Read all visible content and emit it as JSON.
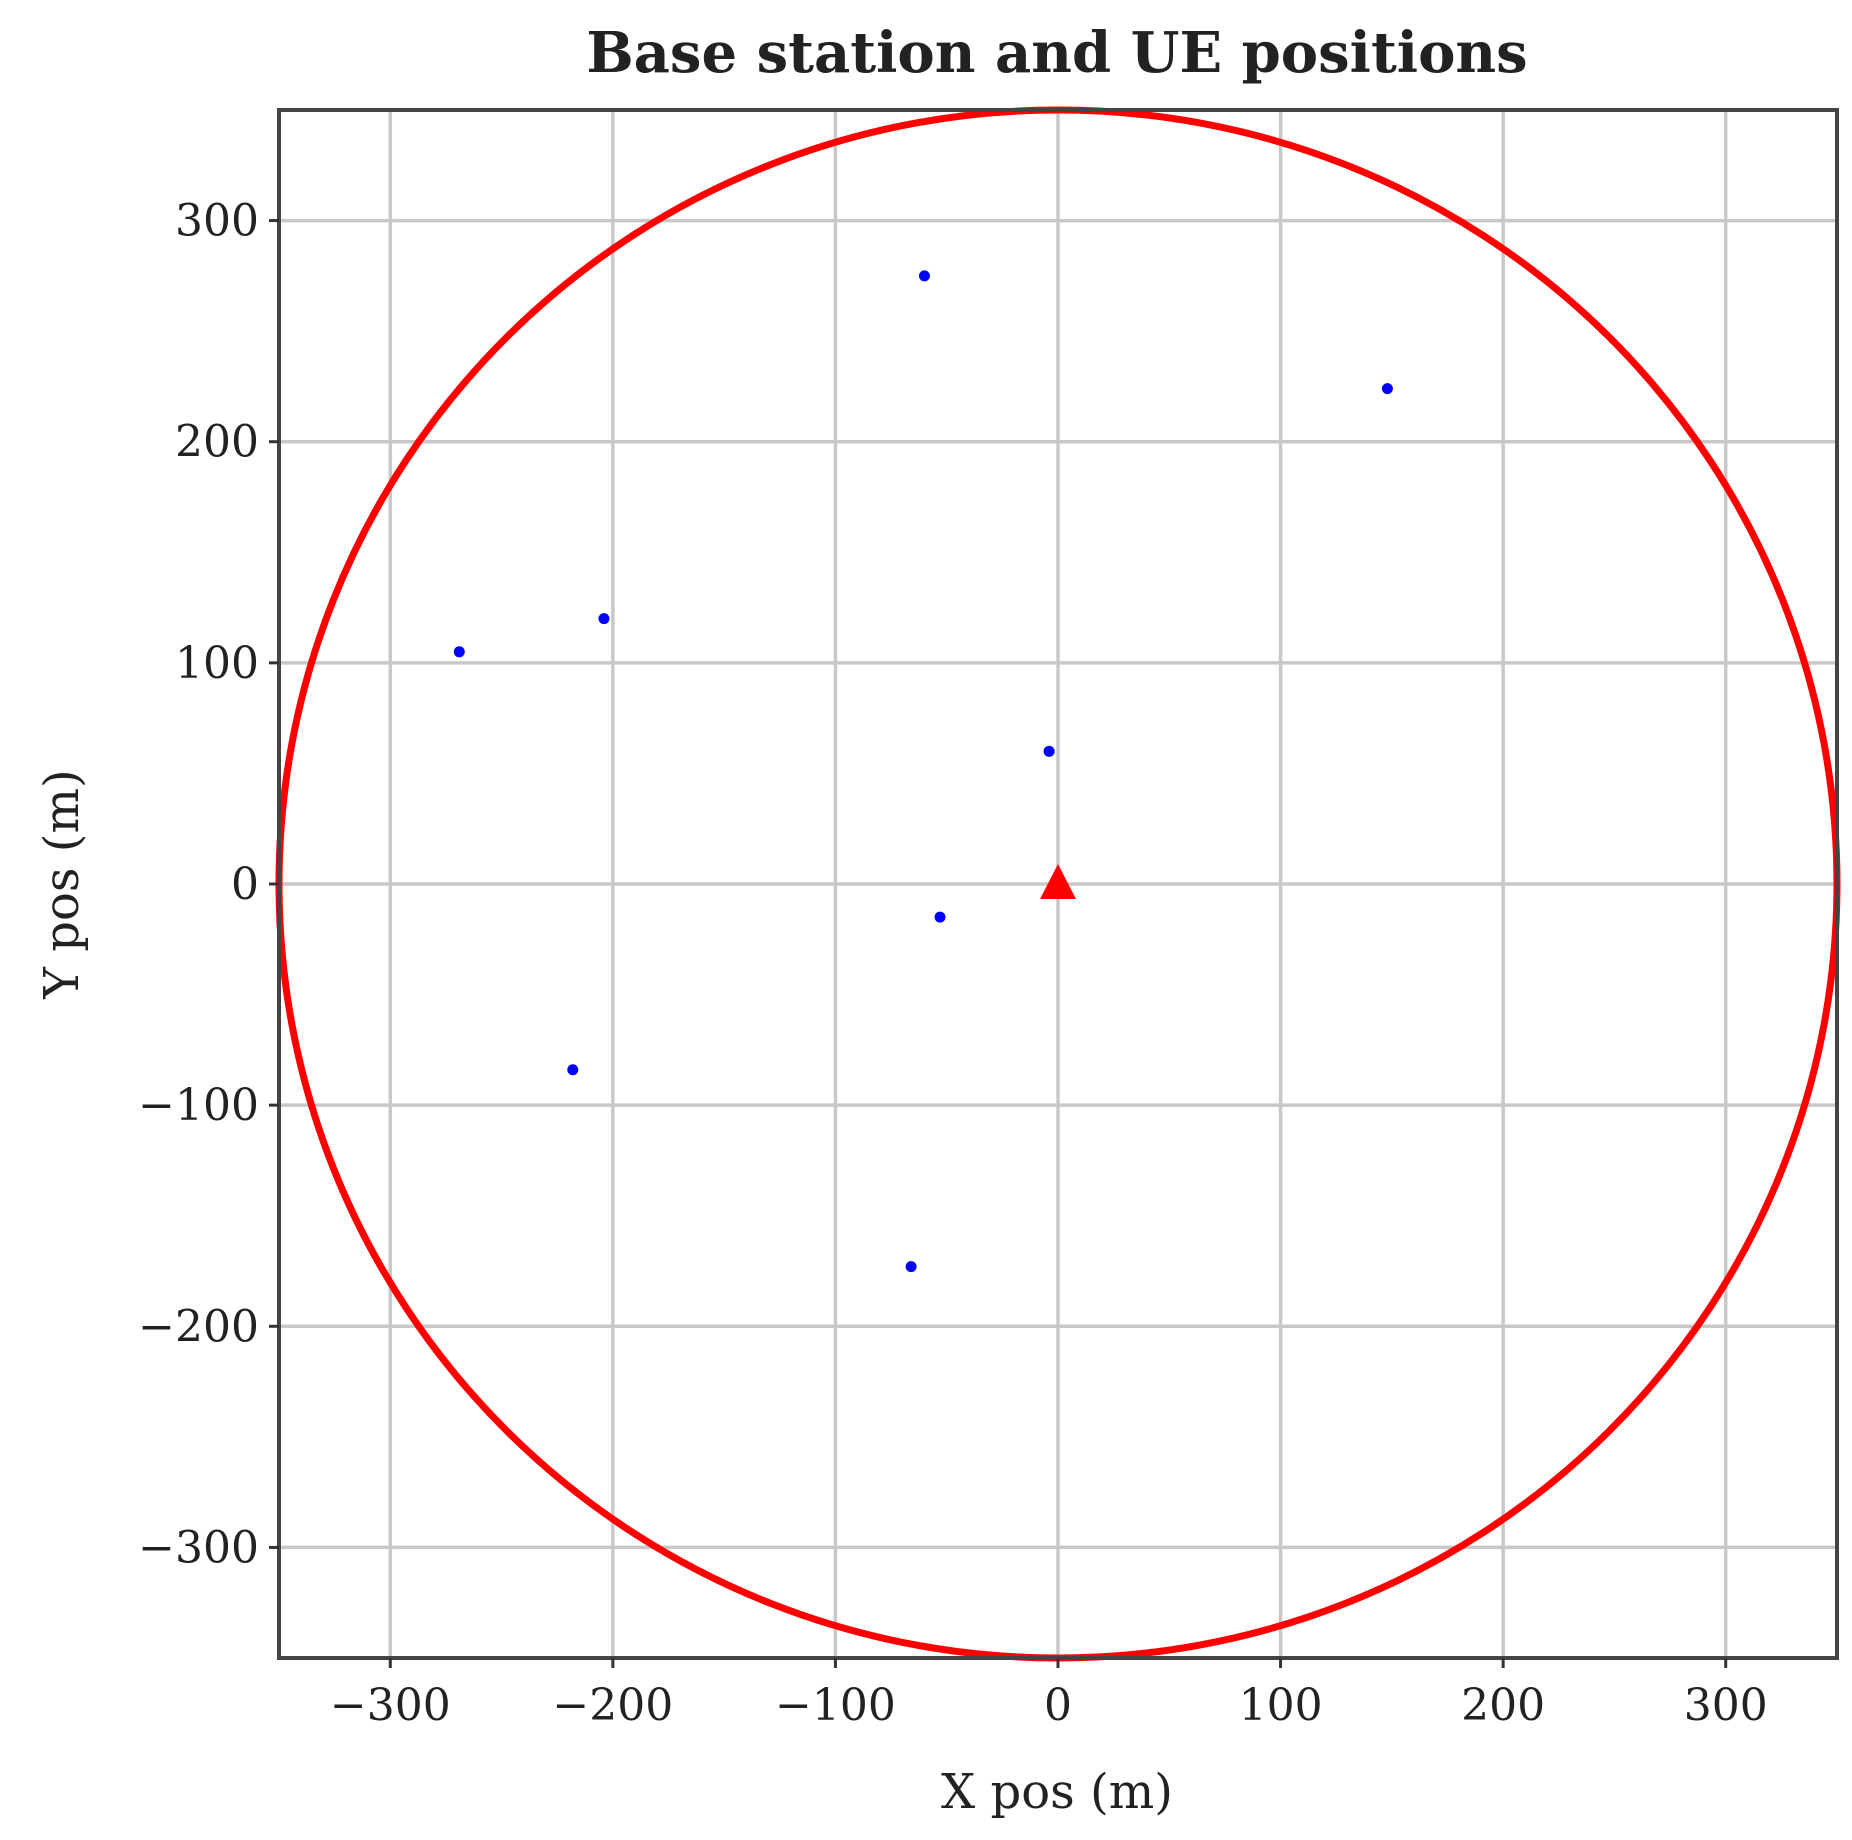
{
  "chart_data": {
    "type": "scatter",
    "title": "Base station and UE positions",
    "xlabel": "X pos (m)",
    "ylabel": "Y pos (m)",
    "xlim": [
      -350,
      350
    ],
    "ylim": [
      -350,
      350
    ],
    "xticks": [
      -300,
      -200,
      -100,
      0,
      100,
      200,
      300
    ],
    "yticks": [
      -300,
      -200,
      -100,
      0,
      100,
      200,
      300
    ],
    "xtick_labels": [
      "−300",
      "−200",
      "−100",
      "0",
      "100",
      "200",
      "300"
    ],
    "ytick_labels": [
      "−300",
      "−200",
      "−100",
      "0",
      "100",
      "200",
      "300"
    ],
    "grid": true,
    "series": [
      {
        "marker": "dot",
        "color": "#0000ff",
        "points": [
          {
            "x": -60,
            "y": 275
          },
          {
            "x": 148,
            "y": 224
          },
          {
            "x": -204,
            "y": 120
          },
          {
            "x": -269,
            "y": 105
          },
          {
            "x": -4,
            "y": 60
          },
          {
            "x": -53,
            "y": -15
          },
          {
            "x": -218,
            "y": -84
          },
          {
            "x": -66,
            "y": -173
          }
        ]
      },
      {
        "marker": "triangle",
        "color": "#ff0000",
        "points": [
          {
            "x": 0,
            "y": 0
          }
        ]
      }
    ],
    "circle": {
      "center": [
        0,
        0
      ],
      "radius": 350,
      "color": "#ff0000"
    }
  }
}
